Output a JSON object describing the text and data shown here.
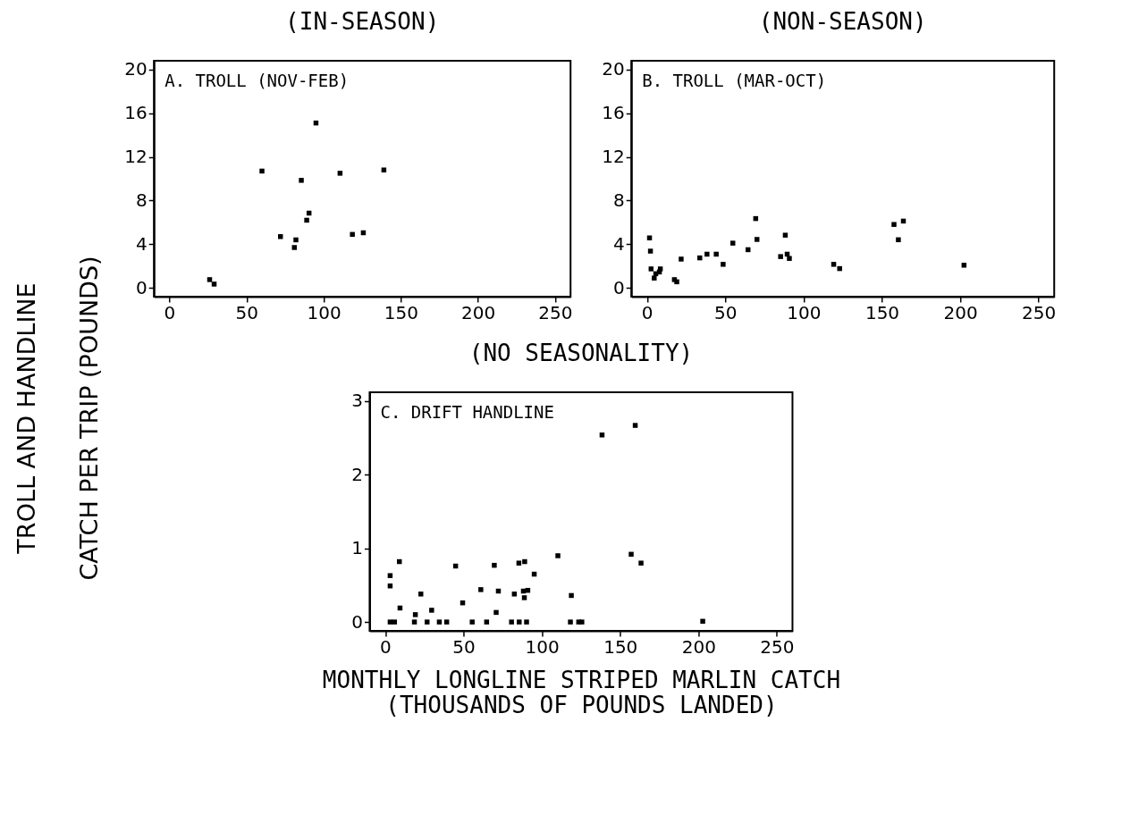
{
  "chart_data": [
    {
      "type": "scatter",
      "title": "(IN-SEASON)",
      "ylabel": "TROLL AND HANDLINE\nCATCH PER TRIP (POUNDS)",
      "annotations": [
        "A.  TROLL  (NOV-FEB)"
      ],
      "marker": "square",
      "grid": false,
      "xlim": [
        -10,
        260
      ],
      "ylim": [
        -0.8,
        20.8
      ],
      "xticks": [
        0,
        50,
        100,
        150,
        200,
        250
      ],
      "yticks": [
        0,
        4,
        8,
        12,
        16,
        20
      ],
      "series": [
        {
          "color": "#000000",
          "x": [
            26.1,
            29,
            60,
            72,
            81,
            82,
            85.5,
            89,
            90.5,
            95,
            110.6,
            118.6,
            125.7,
            139
          ],
          "values": [
            0.76,
            0.35,
            10.7,
            4.7,
            3.7,
            4.4,
            9.85,
            6.2,
            6.85,
            15.1,
            10.5,
            4.9,
            5.05,
            10.8
          ]
        }
      ]
    },
    {
      "type": "scatter",
      "title": "(NON-SEASON)",
      "annotations": [
        "B.  TROLL  (MAR-OCT)"
      ],
      "marker": "square",
      "grid": false,
      "xlim": [
        -10,
        260
      ],
      "ylim": [
        -0.8,
        20.8
      ],
      "xticks": [
        0,
        50,
        100,
        150,
        200,
        250
      ],
      "yticks": [
        0,
        4,
        8,
        12,
        16,
        20
      ],
      "series": [
        {
          "color": "#000000",
          "x": [
            1.6,
            2.2,
            2.6,
            4.6,
            5.6,
            7.9,
            8.5,
            17.5,
            19,
            21.8,
            33.7,
            38.3,
            44.2,
            48.6,
            54.8,
            64.5,
            69.4,
            70.2,
            85.3,
            88.3,
            89.5,
            90.9,
            119.2,
            123,
            157.7,
            160.5,
            163.7,
            202.4
          ],
          "values": [
            4.58,
            3.37,
            1.74,
            0.9,
            1.3,
            1.46,
            1.74,
            0.76,
            0.56,
            2.64,
            2.75,
            3.09,
            3.09,
            2.16,
            4.1,
            3.5,
            6.35,
            4.44,
            2.87,
            4.83,
            3.09,
            2.7,
            2.16,
            1.77,
            5.81,
            4.41,
            6.12,
            2.08
          ]
        }
      ]
    },
    {
      "type": "scatter",
      "title": "(NO SEASONALITY)",
      "xlabel": "MONTHLY LONGLINE STRIPED MARLIN CATCH\n(THOUSANDS OF POUNDS LANDED)",
      "annotations": [
        "C.  DRIFT HANDLINE"
      ],
      "marker": "square",
      "grid": false,
      "xlim": [
        -10,
        260
      ],
      "ylim": [
        -0.12,
        3.12
      ],
      "xticks": [
        0,
        50,
        100,
        150,
        200,
        250
      ],
      "yticks": [
        0,
        1,
        2,
        3
      ],
      "series": [
        {
          "color": "#000000",
          "x": [
            3.1,
            3.1,
            3.1,
            5.9,
            9,
            9.4,
            19.2,
            18.6,
            22.7,
            26.7,
            29.6,
            34.5,
            39.2,
            44.9,
            49.4,
            55.5,
            61,
            64.7,
            69.6,
            70.8,
            72.2,
            80.6,
            82.4,
            85.3,
            85.5,
            89,
            88.2,
            88.8,
            91,
            90.2,
            95.1,
            110.2,
            118.8,
            118.2,
            123.5,
            125.5,
            138.4,
            159.6,
            157,
            163.3,
            202.7
          ],
          "values": [
            0.63,
            0.49,
            0,
            0,
            0.82,
            0.19,
            0.1,
            0,
            0.38,
            0,
            0.16,
            0,
            0,
            0.76,
            0.26,
            0,
            0.44,
            0,
            0.77,
            0.13,
            0.42,
            0,
            0.38,
            0.8,
            0,
            0.82,
            0.42,
            0.33,
            0.43,
            0,
            0.65,
            0.9,
            0.36,
            0,
            0,
            0,
            2.54,
            2.67,
            0.92,
            0.8,
            0.01
          ]
        }
      ]
    }
  ]
}
